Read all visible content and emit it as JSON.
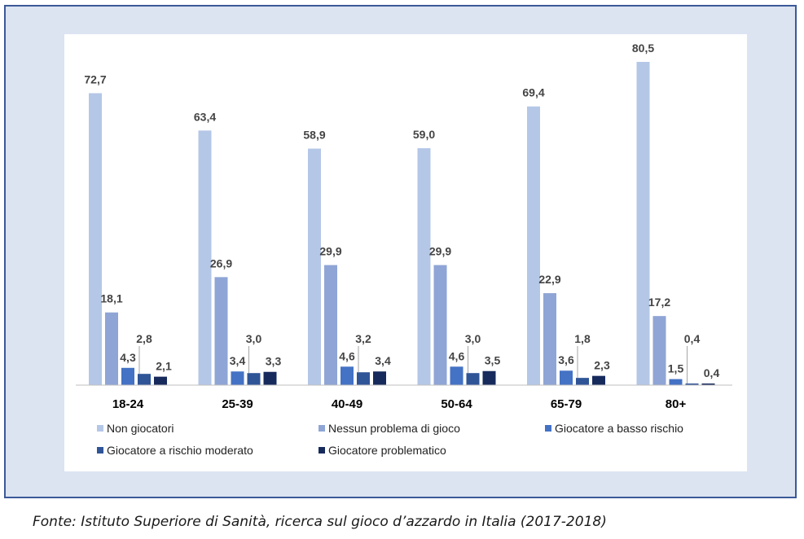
{
  "chart_data": {
    "type": "bar",
    "categories": [
      "18-24",
      "25-39",
      "40-49",
      "50-64",
      "65-79",
      "80+"
    ],
    "series": [
      {
        "name": "Non giocatori",
        "values": [
          72.7,
          63.4,
          58.9,
          59.0,
          69.4,
          80.5
        ],
        "labels": [
          "72,7",
          "63,4",
          "58,9",
          "59,0",
          "69,4",
          "80,5"
        ]
      },
      {
        "name": "Nessun problema di gioco",
        "values": [
          18.1,
          26.9,
          29.9,
          29.9,
          22.9,
          17.2
        ],
        "labels": [
          "18,1",
          "26,9",
          "29,9",
          "29,9",
          "22,9",
          "17,2"
        ]
      },
      {
        "name": "Giocatore a basso rischio",
        "values": [
          4.3,
          3.4,
          4.6,
          4.6,
          3.6,
          1.5
        ],
        "labels": [
          "4,3",
          "3,4",
          "4,6",
          "4,6",
          "3,6",
          "1,5"
        ]
      },
      {
        "name": "Giocatore a rischio moderato",
        "values": [
          2.8,
          3.0,
          3.2,
          3.0,
          1.8,
          0.4
        ],
        "labels": [
          "2,8",
          "3,0",
          "3,2",
          "3,0",
          "1,8",
          "0,4"
        ]
      },
      {
        "name": "Giocatore problematico",
        "values": [
          2.1,
          3.3,
          3.4,
          3.5,
          2.3,
          0.4
        ],
        "labels": [
          "2,1",
          "3,3",
          "3,4",
          "3,5",
          "2,3",
          "0,4"
        ]
      }
    ],
    "colors": [
      "#b4c7e7",
      "#8fa5d6",
      "#4472c4",
      "#2f5597",
      "#162a5c"
    ],
    "ylim": [
      0,
      85
    ],
    "legend_position": "bottom",
    "grid": false,
    "xlabel": "",
    "ylabel": ""
  },
  "source_note": "Fonte: Istituto Superiore di Sanità, ricerca sul gioco d’azzardo in Italia (2017-2018)"
}
